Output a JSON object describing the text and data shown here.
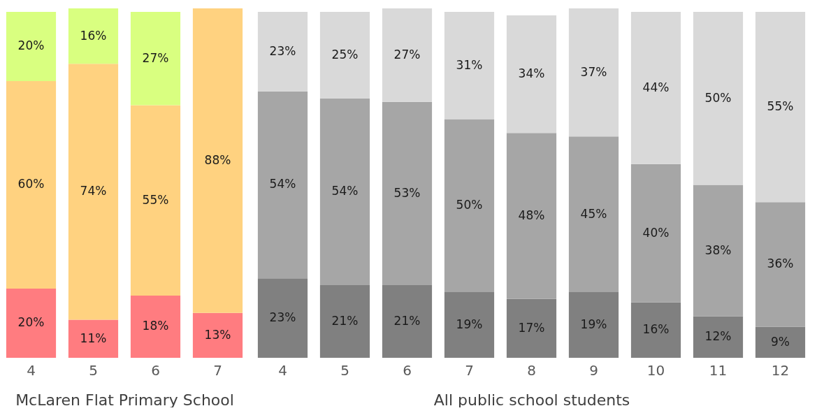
{
  "chart_data": [
    {
      "type": "bar",
      "stacked": true,
      "xlabel": "McLaren Flat Primary School",
      "categories": [
        "4",
        "5",
        "6",
        "7"
      ],
      "grid": false,
      "series": [
        {
          "color": "#ff7c80",
          "values": [
            20,
            11,
            18,
            13
          ],
          "value_labels": [
            "20%",
            "11%",
            "18%",
            "13%"
          ]
        },
        {
          "color": "#ffd280",
          "values": [
            60,
            74,
            55,
            88
          ],
          "value_labels": [
            "60%",
            "74%",
            "55%",
            "88%"
          ]
        },
        {
          "color": "#d9ff80",
          "values": [
            20,
            16,
            27,
            null
          ],
          "value_labels": [
            "20%",
            "16%",
            "27%",
            null
          ]
        }
      ]
    },
    {
      "type": "bar",
      "stacked": true,
      "xlabel": "All public school students",
      "categories": [
        "4",
        "5",
        "6",
        "7",
        "8",
        "9",
        "10",
        "11",
        "12"
      ],
      "grid": false,
      "series": [
        {
          "color": "#808080",
          "values": [
            23,
            21,
            21,
            19,
            17,
            19,
            16,
            12,
            9
          ],
          "value_labels": [
            "23%",
            "21%",
            "21%",
            "19%",
            "17%",
            "19%",
            "16%",
            "12%",
            "9%"
          ]
        },
        {
          "color": "#a6a6a6",
          "values": [
            54,
            54,
            53,
            50,
            48,
            45,
            40,
            38,
            36
          ],
          "value_labels": [
            "54%",
            "54%",
            "53%",
            "50%",
            "48%",
            "45%",
            "40%",
            "38%",
            "36%"
          ]
        },
        {
          "color": "#d9d9d9",
          "values": [
            23,
            25,
            27,
            31,
            34,
            37,
            44,
            50,
            55
          ],
          "value_labels": [
            "23%",
            "25%",
            "27%",
            "31%",
            "34%",
            "37%",
            "44%",
            "50%",
            "55%"
          ]
        }
      ]
    }
  ]
}
